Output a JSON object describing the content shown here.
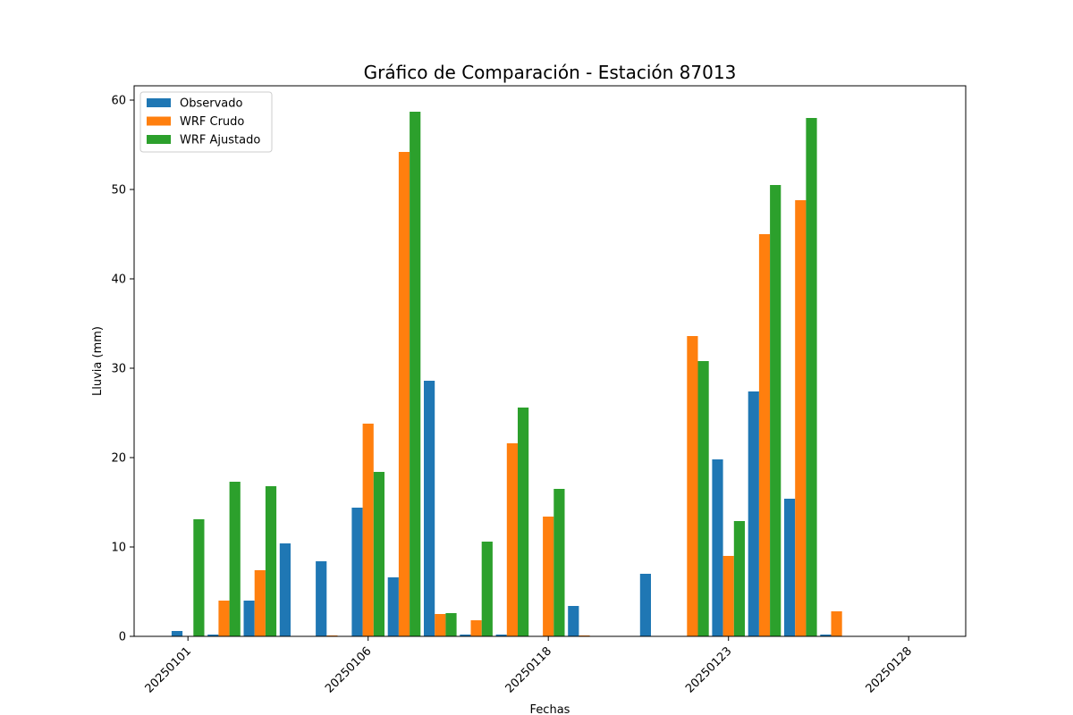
{
  "chart_data": {
    "type": "bar",
    "title": "Gráfico de Comparación - Estación 87013",
    "xlabel": "Fechas",
    "ylabel": "Lluvia (mm)",
    "ylim": [
      0,
      61.6
    ],
    "yticks": [
      0,
      10,
      20,
      30,
      40,
      50,
      60
    ],
    "legend_position": "top-left",
    "grid": false,
    "x_tick_labels": [
      "20250101",
      "20250106",
      "20250118",
      "20250123",
      "20250128"
    ],
    "x_tick_every": 5,
    "series": [
      {
        "name": "Observado",
        "color": "#1f77b4",
        "values": [
          0.6,
          0.2,
          4.0,
          10.4,
          8.4,
          14.4,
          6.6,
          28.6,
          0.2,
          0.2,
          0,
          3.4,
          0,
          7.0,
          0,
          19.8,
          27.4,
          15.4,
          0.2,
          0,
          0
        ]
      },
      {
        "name": "WRF Crudo",
        "color": "#ff7f0e",
        "values": [
          0,
          4.0,
          7.4,
          0,
          0.1,
          23.8,
          54.2,
          2.5,
          1.8,
          21.6,
          13.4,
          0.1,
          0,
          0,
          33.6,
          9.0,
          45.0,
          48.8,
          2.8,
          0,
          0
        ]
      },
      {
        "name": "WRF Ajustado",
        "color": "#2ca02c",
        "values": [
          13.1,
          17.3,
          16.8,
          0,
          0,
          18.4,
          58.7,
          2.6,
          10.6,
          25.6,
          16.5,
          0,
          0,
          0,
          30.8,
          12.9,
          50.5,
          58.0,
          0,
          0,
          0
        ]
      }
    ]
  }
}
